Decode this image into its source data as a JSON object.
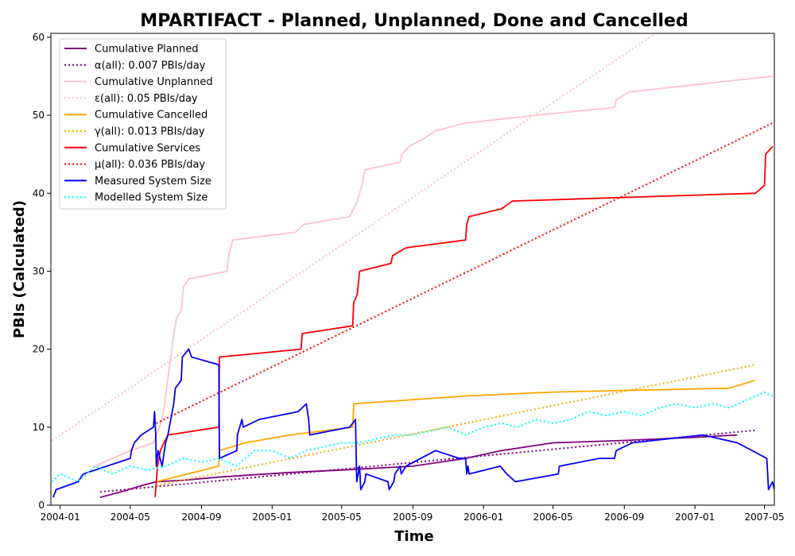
{
  "chart_data": {
    "type": "line",
    "title": "MPARTIFACT - Planned, Unplanned, Done  and Cancelled",
    "xlabel": "Time",
    "ylabel": "PBIs (Calculated)",
    "xlim": [
      "2003-12-16",
      "2007-05-18"
    ],
    "ylim": [
      0,
      60.5
    ],
    "x_ticks": [
      "2004-01-01",
      "2004-05-01",
      "2004-09-01",
      "2005-01-01",
      "2005-05-01",
      "2005-09-01",
      "2006-01-01",
      "2006-05-01",
      "2006-09-01",
      "2007-01-01",
      "2007-05-01"
    ],
    "x_tick_labels": [
      "2004-01",
      "2004-05",
      "2004-09",
      "2005-01",
      "2005-05",
      "2005-09",
      "2006-01",
      "2006-05",
      "2006-09",
      "2007-01",
      "2007-05"
    ],
    "y_ticks": [
      0,
      10,
      20,
      30,
      40,
      50,
      60
    ],
    "grid": false,
    "legend_position": "top-left",
    "series": [
      {
        "name": "Cumulative Planned",
        "color": "#800080",
        "style": "solid",
        "points": [
          [
            "2004-03-10",
            1
          ],
          [
            "2004-04-20",
            1.8
          ],
          [
            "2004-05-20",
            2.5
          ],
          [
            "2004-06-15",
            3
          ],
          [
            "2004-08-01",
            3.2
          ],
          [
            "2004-10-01",
            3.6
          ],
          [
            "2004-12-01",
            3.9
          ],
          [
            "2005-02-01",
            4.2
          ],
          [
            "2005-05-01",
            4.5
          ],
          [
            "2005-09-01",
            5
          ],
          [
            "2005-12-01",
            6
          ],
          [
            "2006-02-01",
            7
          ],
          [
            "2006-05-01",
            8
          ],
          [
            "2006-09-01",
            8.3
          ],
          [
            "2007-01-01",
            8.7
          ],
          [
            "2007-03-15",
            9
          ]
        ]
      },
      {
        "name": "α(all): 0.007 PBIs/day",
        "color": "#800080",
        "style": "dotted",
        "points": [
          [
            "2004-03-10",
            1.7
          ],
          [
            "2007-04-15",
            9.6
          ]
        ]
      },
      {
        "name": "Cumulative Unplanned",
        "color": "#ffc0cb",
        "style": "solid",
        "points": [
          [
            "2004-03-01",
            5
          ],
          [
            "2004-05-01",
            7
          ],
          [
            "2004-06-10",
            8
          ],
          [
            "2004-06-15",
            9
          ],
          [
            "2004-06-25",
            11
          ],
          [
            "2004-07-01",
            14
          ],
          [
            "2004-07-08",
            18
          ],
          [
            "2004-07-12",
            20
          ],
          [
            "2004-07-15",
            22
          ],
          [
            "2004-07-20",
            24
          ],
          [
            "2004-07-28",
            25
          ],
          [
            "2004-08-01",
            28
          ],
          [
            "2004-08-10",
            29
          ],
          [
            "2004-10-15",
            30
          ],
          [
            "2004-10-18",
            32
          ],
          [
            "2004-10-25",
            34
          ],
          [
            "2005-02-10",
            35
          ],
          [
            "2005-02-25",
            36
          ],
          [
            "2005-05-15",
            37
          ],
          [
            "2005-05-28",
            39
          ],
          [
            "2005-06-05",
            41
          ],
          [
            "2005-06-10",
            43
          ],
          [
            "2005-08-10",
            44
          ],
          [
            "2005-08-13",
            45
          ],
          [
            "2005-08-25",
            46
          ],
          [
            "2005-09-20",
            47
          ],
          [
            "2005-10-10",
            48
          ],
          [
            "2005-12-01",
            49
          ],
          [
            "2006-04-01",
            50
          ],
          [
            "2006-08-15",
            51
          ],
          [
            "2006-08-18",
            52
          ],
          [
            "2006-09-10",
            53
          ],
          [
            "2007-05-15",
            55
          ]
        ]
      },
      {
        "name": "ε(all): 0.05 PBIs/day",
        "color": "#ffc0cb",
        "style": "dotted",
        "points": [
          [
            "2003-12-18",
            8.3
          ],
          [
            "2006-10-25",
            60.5
          ]
        ]
      },
      {
        "name": "Cumulative Cancelled",
        "color": "#ffa500",
        "style": "solid",
        "points": [
          [
            "2004-06-15",
            3
          ],
          [
            "2004-10-01",
            5
          ],
          [
            "2004-10-02",
            7
          ],
          [
            "2004-11-15",
            8
          ],
          [
            "2005-02-01",
            9
          ],
          [
            "2005-05-20",
            10
          ],
          [
            "2005-05-22",
            13
          ],
          [
            "2005-12-01",
            14
          ],
          [
            "2006-05-01",
            14.5
          ],
          [
            "2007-03-01",
            15
          ],
          [
            "2007-04-15",
            16
          ]
        ]
      },
      {
        "name": "γ(all): 0.013 PBIs/day",
        "color": "#ffa500",
        "style": "dotted",
        "points": [
          [
            "2004-06-15",
            2.5
          ],
          [
            "2007-04-15",
            18
          ]
        ]
      },
      {
        "name": "Cumulative Services",
        "color": "#ff0000",
        "style": "solid",
        "points": [
          [
            "2004-06-13",
            1
          ],
          [
            "2004-06-17",
            5
          ],
          [
            "2004-06-22",
            7
          ],
          [
            "2004-06-28",
            8
          ],
          [
            "2004-07-05",
            9
          ],
          [
            "2004-10-01",
            10
          ],
          [
            "2004-10-02",
            19
          ],
          [
            "2005-02-20",
            20
          ],
          [
            "2005-02-22",
            22
          ],
          [
            "2005-05-20",
            23
          ],
          [
            "2005-05-22",
            26
          ],
          [
            "2005-05-28",
            27
          ],
          [
            "2005-06-01",
            30
          ],
          [
            "2005-07-25",
            31
          ],
          [
            "2005-07-28",
            32
          ],
          [
            "2005-08-20",
            33
          ],
          [
            "2005-12-01",
            34
          ],
          [
            "2005-12-03",
            36
          ],
          [
            "2005-12-07",
            37
          ],
          [
            "2006-02-01",
            38
          ],
          [
            "2006-02-20",
            39
          ],
          [
            "2007-04-15",
            40
          ],
          [
            "2007-05-01",
            41
          ],
          [
            "2007-05-03",
            45
          ],
          [
            "2007-05-15",
            46
          ]
        ]
      },
      {
        "name": "μ(all): 0.036 PBIs/day",
        "color": "#ff0000",
        "style": "dotted",
        "points": [
          [
            "2004-06-15",
            10.5
          ],
          [
            "2007-05-15",
            49
          ]
        ]
      },
      {
        "name": "Measured System Size",
        "color": "#0000ff",
        "style": "solid",
        "points": [
          [
            "2003-12-20",
            1
          ],
          [
            "2003-12-25",
            2
          ],
          [
            "2004-02-01",
            3
          ],
          [
            "2004-02-10",
            4
          ],
          [
            "2004-05-01",
            6
          ],
          [
            "2004-05-03",
            7
          ],
          [
            "2004-05-08",
            8
          ],
          [
            "2004-05-20",
            9
          ],
          [
            "2004-06-10",
            10
          ],
          [
            "2004-06-12",
            12
          ],
          [
            "2004-06-14",
            9
          ],
          [
            "2004-06-15",
            5
          ],
          [
            "2004-06-18",
            7
          ],
          [
            "2004-06-25",
            5
          ],
          [
            "2004-07-01",
            8
          ],
          [
            "2004-07-05",
            9
          ],
          [
            "2004-07-10",
            11
          ],
          [
            "2004-07-15",
            13
          ],
          [
            "2004-07-18",
            15
          ],
          [
            "2004-07-28",
            16
          ],
          [
            "2004-07-30",
            19
          ],
          [
            "2004-08-10",
            20
          ],
          [
            "2004-08-15",
            19
          ],
          [
            "2004-10-01",
            18
          ],
          [
            "2004-10-02",
            6
          ],
          [
            "2004-11-01",
            7
          ],
          [
            "2004-11-02",
            9
          ],
          [
            "2004-11-10",
            11
          ],
          [
            "2004-11-12",
            10
          ],
          [
            "2004-12-10",
            11
          ],
          [
            "2005-02-15",
            12
          ],
          [
            "2005-03-01",
            13
          ],
          [
            "2005-03-05",
            11
          ],
          [
            "2005-03-07",
            9
          ],
          [
            "2005-05-15",
            10
          ],
          [
            "2005-05-25",
            11
          ],
          [
            "2005-05-27",
            3
          ],
          [
            "2005-06-01",
            5
          ],
          [
            "2005-06-03",
            2
          ],
          [
            "2005-06-10",
            3
          ],
          [
            "2005-06-12",
            4
          ],
          [
            "2005-07-20",
            3
          ],
          [
            "2005-07-22",
            2
          ],
          [
            "2005-07-30",
            3
          ],
          [
            "2005-08-01",
            4
          ],
          [
            "2005-08-10",
            5
          ],
          [
            "2005-08-12",
            4
          ],
          [
            "2005-08-20",
            5
          ],
          [
            "2005-10-10",
            7
          ],
          [
            "2005-11-20",
            6
          ],
          [
            "2005-12-01",
            6
          ],
          [
            "2005-12-03",
            4
          ],
          [
            "2005-12-05",
            5
          ],
          [
            "2005-12-07",
            4
          ],
          [
            "2006-01-30",
            5
          ],
          [
            "2006-02-10",
            4
          ],
          [
            "2006-02-25",
            3
          ],
          [
            "2006-05-10",
            4
          ],
          [
            "2006-05-12",
            5
          ],
          [
            "2006-07-20",
            6
          ],
          [
            "2006-08-15",
            6
          ],
          [
            "2006-08-18",
            7
          ],
          [
            "2006-09-15",
            8
          ],
          [
            "2007-01-15",
            9
          ],
          [
            "2007-03-15",
            8
          ],
          [
            "2007-05-05",
            6
          ],
          [
            "2007-05-08",
            2
          ],
          [
            "2007-05-15",
            3
          ],
          [
            "2007-05-18",
            2
          ]
        ]
      },
      {
        "name": "Modelled System Size",
        "color": "#00ffff",
        "style": "dotted",
        "points": [
          [
            "2003-12-18",
            3
          ],
          [
            "2004-01-01",
            4
          ],
          [
            "2004-02-01",
            3
          ],
          [
            "2004-03-01",
            5
          ],
          [
            "2004-04-01",
            4
          ],
          [
            "2004-05-01",
            5
          ],
          [
            "2004-06-01",
            4.5
          ],
          [
            "2004-07-01",
            5
          ],
          [
            "2004-08-01",
            6
          ],
          [
            "2004-09-01",
            5.5
          ],
          [
            "2004-10-01",
            6
          ],
          [
            "2004-11-01",
            5
          ],
          [
            "2004-12-01",
            7
          ],
          [
            "2005-01-01",
            7
          ],
          [
            "2005-02-01",
            6
          ],
          [
            "2005-03-01",
            7
          ],
          [
            "2005-04-01",
            7.5
          ],
          [
            "2005-05-01",
            8
          ],
          [
            "2005-06-01",
            8
          ],
          [
            "2005-07-01",
            8.5
          ],
          [
            "2005-08-01",
            9
          ],
          [
            "2005-09-01",
            9
          ],
          [
            "2005-10-01",
            9.5
          ],
          [
            "2005-11-01",
            10
          ],
          [
            "2005-12-01",
            9
          ],
          [
            "2006-01-01",
            10
          ],
          [
            "2006-02-01",
            10.5
          ],
          [
            "2006-03-01",
            10
          ],
          [
            "2006-04-01",
            11
          ],
          [
            "2006-05-01",
            10.5
          ],
          [
            "2006-06-01",
            11
          ],
          [
            "2006-07-01",
            12
          ],
          [
            "2006-08-01",
            11.5
          ],
          [
            "2006-09-01",
            12
          ],
          [
            "2006-10-01",
            11.5
          ],
          [
            "2006-11-01",
            12.5
          ],
          [
            "2006-12-01",
            13
          ],
          [
            "2007-01-01",
            12.5
          ],
          [
            "2007-02-01",
            13
          ],
          [
            "2007-03-01",
            12.5
          ],
          [
            "2007-04-01",
            13.5
          ],
          [
            "2007-05-01",
            14.5
          ],
          [
            "2007-05-15",
            14
          ]
        ]
      }
    ]
  }
}
